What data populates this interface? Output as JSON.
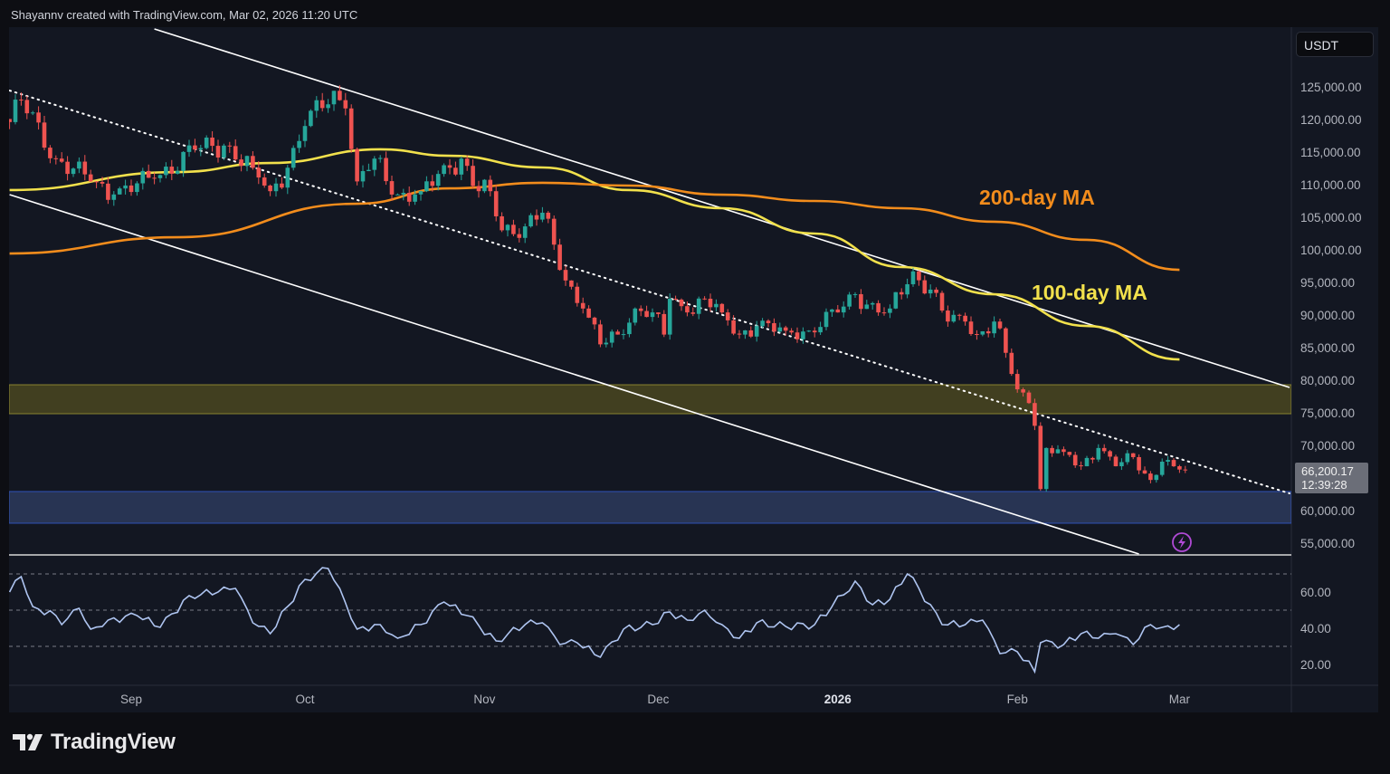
{
  "header": {
    "attribution": "Shayannv created with TradingView.com, Mar 02, 2026 11:20 UTC"
  },
  "currency_selector": "USDT",
  "footer": {
    "brand": "TradingView"
  },
  "icons": {
    "alert": "lightning-bolt-icon",
    "logo": "tradingview-logo-icon"
  },
  "colors": {
    "up": "#26a69a",
    "down": "#ef5350",
    "ma100": "#f2e14c",
    "ma200": "#f28c1c",
    "support_zone": "#2d3a5c",
    "resistance_zone": "#4a4620",
    "rsi": "#aec4f0",
    "channel": "#ffffff"
  },
  "chart_data": [
    {
      "type": "candlestick",
      "ylim": [
        55000,
        125000
      ],
      "yticks": [
        "125,000.00",
        "120,000.00",
        "115,000.00",
        "110,000.00",
        "105,000.00",
        "100,000.00",
        "95,000.00",
        "90,000.00",
        "85,000.00",
        "80,000.00",
        "75,000.00",
        "70,000.00",
        "60,000.00",
        "55,000.00"
      ],
      "ytick_values": [
        125000,
        120000,
        115000,
        110000,
        105000,
        100000,
        95000,
        90000,
        85000,
        80000,
        75000,
        70000,
        60000,
        55000
      ],
      "xticks": [
        {
          "label": "Sep",
          "date": "2025-09-01",
          "bold": false
        },
        {
          "label": "Oct",
          "date": "2025-10-01",
          "bold": false
        },
        {
          "label": "Nov",
          "date": "2025-11-01",
          "bold": false
        },
        {
          "label": "Dec",
          "date": "2025-12-01",
          "bold": false
        },
        {
          "label": "2026",
          "date": "2026-01-01",
          "bold": true
        },
        {
          "label": "Feb",
          "date": "2026-02-01",
          "bold": false
        },
        {
          "label": "Mar",
          "date": "2026-03-01",
          "bold": false
        }
      ],
      "last_price": {
        "value": "66,200.17",
        "countdown": "12:39:28"
      },
      "close_keypoints": [
        [
          "2025-08-11",
          119600
        ],
        [
          "2025-08-13",
          123000
        ],
        [
          "2025-08-19",
          114000
        ],
        [
          "2025-08-25",
          110500
        ],
        [
          "2025-08-29",
          108500
        ],
        [
          "2025-09-05",
          111000
        ],
        [
          "2025-09-12",
          115400
        ],
        [
          "2025-09-17",
          116000
        ],
        [
          "2025-09-22",
          112600
        ],
        [
          "2025-09-25",
          109000
        ],
        [
          "2025-09-28",
          112600
        ],
        [
          "2025-10-01",
          119000
        ],
        [
          "2025-10-06",
          124400
        ],
        [
          "2025-10-08",
          121700
        ],
        [
          "2025-10-10",
          110500
        ],
        [
          "2025-10-13",
          114000
        ],
        [
          "2025-10-17",
          108500
        ],
        [
          "2025-10-21",
          109000
        ],
        [
          "2025-10-26",
          112600
        ],
        [
          "2025-10-28",
          114000
        ],
        [
          "2025-10-31",
          109000
        ],
        [
          "2025-11-02",
          109000
        ],
        [
          "2025-11-04",
          103000
        ],
        [
          "2025-11-08",
          103600
        ],
        [
          "2025-11-11",
          105700
        ],
        [
          "2025-11-13",
          100800
        ],
        [
          "2025-11-15",
          95300
        ],
        [
          "2025-11-18",
          91000
        ],
        [
          "2025-11-21",
          85500
        ],
        [
          "2025-11-24",
          87000
        ],
        [
          "2025-11-27",
          91000
        ],
        [
          "2025-11-30",
          90400
        ],
        [
          "2025-12-02",
          87000
        ],
        [
          "2025-12-03",
          92500
        ],
        [
          "2025-12-06",
          90400
        ],
        [
          "2025-12-09",
          92500
        ],
        [
          "2025-12-12",
          90400
        ],
        [
          "2025-12-15",
          87000
        ],
        [
          "2025-12-18",
          88300
        ],
        [
          "2025-12-23",
          87600
        ],
        [
          "2025-12-27",
          87600
        ],
        [
          "2026-01-01",
          90400
        ],
        [
          "2026-01-04",
          93200
        ],
        [
          "2026-01-08",
          90400
        ],
        [
          "2026-01-10",
          91000
        ],
        [
          "2026-01-14",
          96700
        ],
        [
          "2026-01-17",
          93900
        ],
        [
          "2026-01-20",
          89000
        ],
        [
          "2026-01-23",
          89000
        ],
        [
          "2026-01-25",
          87000
        ],
        [
          "2026-01-28",
          89000
        ],
        [
          "2026-01-30",
          84200
        ],
        [
          "2026-02-01",
          78600
        ],
        [
          "2026-02-03",
          76500
        ],
        [
          "2026-02-04",
          73000
        ],
        [
          "2026-02-05",
          63300
        ],
        [
          "2026-02-06",
          69600
        ],
        [
          "2026-02-09",
          69000
        ],
        [
          "2026-02-12",
          66800
        ],
        [
          "2026-02-15",
          69600
        ],
        [
          "2026-02-18",
          66800
        ],
        [
          "2026-02-21",
          68200
        ],
        [
          "2026-02-24",
          64700
        ],
        [
          "2026-02-26",
          67500
        ],
        [
          "2026-02-28",
          66800
        ],
        [
          "2026-03-02",
          66200
        ]
      ],
      "moving_averages": [
        {
          "name": "100-day MA",
          "color_key": "ma100",
          "points": [
            [
              "2025-08-11",
              109170
            ],
            [
              "2025-09-09",
              111940
            ],
            [
              "2025-09-25",
              113330
            ],
            [
              "2025-10-14",
              115420
            ],
            [
              "2025-10-26",
              114440
            ],
            [
              "2025-11-11",
              112640
            ],
            [
              "2025-11-26",
              109170
            ],
            [
              "2025-12-12",
              106390
            ],
            [
              "2025-12-28",
              102500
            ],
            [
              "2026-01-12",
              97360
            ],
            [
              "2026-01-28",
              93190
            ],
            [
              "2026-02-13",
              88330
            ],
            [
              "2026-03-01",
              83190
            ]
          ]
        },
        {
          "name": "200-day MA",
          "color_key": "ma200",
          "points": [
            [
              "2025-08-11",
              99440
            ],
            [
              "2025-09-09",
              101940
            ],
            [
              "2025-10-10",
              107080
            ],
            [
              "2025-10-26",
              109440
            ],
            [
              "2025-11-11",
              110280
            ],
            [
              "2025-11-26",
              109860
            ],
            [
              "2025-12-12",
              108470
            ],
            [
              "2025-12-28",
              107500
            ],
            [
              "2026-01-12",
              106390
            ],
            [
              "2026-01-28",
              104310
            ],
            [
              "2026-02-13",
              101530
            ],
            [
              "2026-03-01",
              96940
            ]
          ]
        }
      ],
      "trendlines": [
        {
          "kind": "channel-upper",
          "style": "solid",
          "from": [
            "2025-09-05",
            133890
          ],
          "to": [
            "2026-03-20",
            78890
          ]
        },
        {
          "kind": "channel-lower",
          "style": "solid",
          "from": [
            "2025-08-11",
            108470
          ],
          "to": [
            "2026-02-22",
            53330
          ]
        },
        {
          "kind": "channel-mid",
          "style": "dotted",
          "from": [
            "2025-08-11",
            124440
          ],
          "to": [
            "2026-03-20",
            62640
          ]
        }
      ],
      "zones": [
        {
          "kind": "resistance",
          "range": [
            74860,
            79300
          ],
          "color_key": "resistance_zone"
        },
        {
          "kind": "support",
          "range": [
            58060,
            62920
          ],
          "color_key": "support_zone"
        }
      ]
    },
    {
      "type": "line",
      "ylim": [
        10,
        75
      ],
      "yticks": [
        "60.00",
        "40.00",
        "20.00"
      ],
      "ytick_values": [
        60,
        40,
        20
      ],
      "bands": [
        70,
        50,
        30
      ],
      "keypoints": [
        [
          "2025-08-11",
          60
        ],
        [
          "2025-08-13",
          68.5
        ],
        [
          "2025-08-15",
          52
        ],
        [
          "2025-08-19",
          47
        ],
        [
          "2025-08-20",
          42
        ],
        [
          "2025-08-23",
          51
        ],
        [
          "2025-08-25",
          39.5
        ],
        [
          "2025-08-28",
          44.5
        ],
        [
          "2025-09-02",
          47
        ],
        [
          "2025-09-06",
          40.5
        ],
        [
          "2025-09-11",
          58
        ],
        [
          "2025-09-16",
          60
        ],
        [
          "2025-09-19",
          62
        ],
        [
          "2025-09-22",
          43
        ],
        [
          "2025-09-25",
          37
        ],
        [
          "2025-09-28",
          52
        ],
        [
          "2025-10-01",
          67
        ],
        [
          "2025-10-05",
          73
        ],
        [
          "2025-10-07",
          62
        ],
        [
          "2025-10-10",
          39.5
        ],
        [
          "2025-10-14",
          42
        ],
        [
          "2025-10-17",
          34.5
        ],
        [
          "2025-10-21",
          42
        ],
        [
          "2025-10-25",
          54.5
        ],
        [
          "2025-10-29",
          47
        ],
        [
          "2025-11-03",
          33
        ],
        [
          "2025-11-08",
          42
        ],
        [
          "2025-11-11",
          43
        ],
        [
          "2025-11-14",
          31
        ],
        [
          "2025-11-17",
          32
        ],
        [
          "2025-11-21",
          24
        ],
        [
          "2025-11-25",
          39.5
        ],
        [
          "2025-11-30",
          42
        ],
        [
          "2025-12-03",
          49
        ],
        [
          "2025-12-06",
          44.5
        ],
        [
          "2025-12-09",
          50
        ],
        [
          "2025-12-12",
          42
        ],
        [
          "2025-12-15",
          34.5
        ],
        [
          "2025-12-18",
          43
        ],
        [
          "2025-12-23",
          41
        ],
        [
          "2025-12-28",
          42
        ],
        [
          "2025-12-31",
          52
        ],
        [
          "2026-01-04",
          66
        ],
        [
          "2026-01-07",
          53
        ],
        [
          "2026-01-10",
          56
        ],
        [
          "2026-01-13",
          70
        ],
        [
          "2026-01-15",
          62
        ],
        [
          "2026-01-19",
          42
        ],
        [
          "2026-01-23",
          42
        ],
        [
          "2026-01-26",
          44.5
        ],
        [
          "2026-01-29",
          26
        ],
        [
          "2026-02-01",
          27
        ],
        [
          "2026-02-04",
          16
        ],
        [
          "2026-02-05",
          32
        ],
        [
          "2026-02-09",
          31
        ],
        [
          "2026-02-12",
          37
        ],
        [
          "2026-02-15",
          34.5
        ],
        [
          "2026-02-18",
          37
        ],
        [
          "2026-02-21",
          31
        ],
        [
          "2026-02-24",
          42
        ],
        [
          "2026-02-26",
          40.5
        ],
        [
          "2026-03-01",
          42
        ]
      ]
    }
  ]
}
